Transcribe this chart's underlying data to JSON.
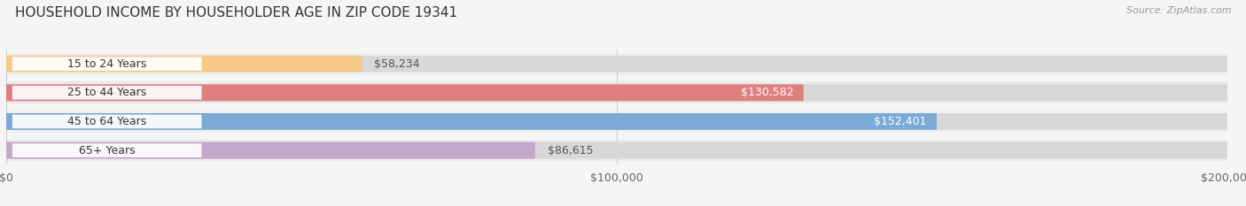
{
  "title": "HOUSEHOLD INCOME BY HOUSEHOLDER AGE IN ZIP CODE 19341",
  "source": "Source: ZipAtlas.com",
  "categories": [
    "15 to 24 Years",
    "25 to 44 Years",
    "45 to 64 Years",
    "65+ Years"
  ],
  "values": [
    58234,
    130582,
    152401,
    86615
  ],
  "bar_colors": [
    "#f5c98a",
    "#e07f7f",
    "#7baad4",
    "#c3a8cb"
  ],
  "value_label_inside": [
    false,
    true,
    true,
    false
  ],
  "xlim": [
    0,
    200000
  ],
  "xtick_labels": [
    "$0",
    "$100,000",
    "$200,000"
  ],
  "bg_color": "#f0f0f0",
  "bar_bg_color": "#e0e0e0",
  "bar_row_bg": "#f8f8f8",
  "title_fontsize": 11,
  "source_fontsize": 8,
  "value_fontsize": 9,
  "tick_fontsize": 9,
  "category_fontsize": 9
}
